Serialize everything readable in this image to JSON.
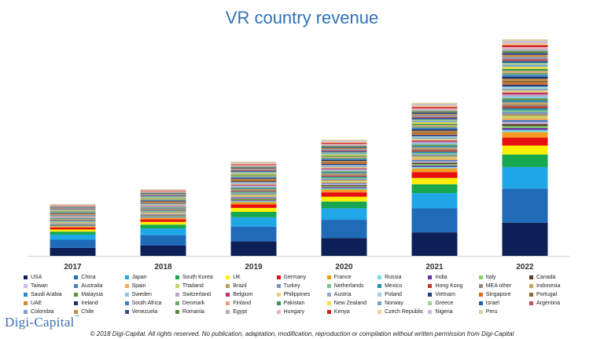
{
  "chart_data": {
    "type": "bar",
    "stacked": true,
    "title": "VR country revenue",
    "xlabel": "",
    "ylabel": "",
    "categories": [
      "2017",
      "2018",
      "2019",
      "2020",
      "2021",
      "2022"
    ],
    "totals": [
      66,
      85,
      120,
      148,
      195,
      276
    ],
    "ylim": [
      0,
      280
    ],
    "legend_position": "bottom",
    "series": [
      {
        "name": "USA",
        "color": "#0d1f57"
      },
      {
        "name": "China",
        "color": "#1f6bb8"
      },
      {
        "name": "Japan",
        "color": "#1fa7e8"
      },
      {
        "name": "South Korea",
        "color": "#17a84f"
      },
      {
        "name": "UK",
        "color": "#ffee00"
      },
      {
        "name": "Germany",
        "color": "#e60e0e"
      },
      {
        "name": "France",
        "color": "#f39a1f"
      },
      {
        "name": "Russia",
        "color": "#6fe0e6"
      },
      {
        "name": "India",
        "color": "#6a2d9e"
      },
      {
        "name": "Italy",
        "color": "#7fd46b"
      },
      {
        "name": "Canada",
        "color": "#5c3a1e"
      },
      {
        "name": "Taiwan",
        "color": "#c9b7e6"
      },
      {
        "name": "Australia",
        "color": "#4a7ebb"
      },
      {
        "name": "Spain",
        "color": "#f1a95a"
      },
      {
        "name": "Thailand",
        "color": "#c6d66a"
      },
      {
        "name": "Brazil",
        "color": "#b6a15a"
      },
      {
        "name": "Turkey",
        "color": "#7c8fc9"
      },
      {
        "name": "Netherlands",
        "color": "#7fc18f"
      },
      {
        "name": "Mexico",
        "color": "#1f8fa8"
      },
      {
        "name": "Hong Kong",
        "color": "#c0392b"
      },
      {
        "name": "MEA other",
        "color": "#9a8a7a"
      },
      {
        "name": "Indonesia",
        "color": "#c9a45c"
      },
      {
        "name": "Saudi Arabia",
        "color": "#2e86c1"
      },
      {
        "name": "Malaysia",
        "color": "#5e8f3a"
      },
      {
        "name": "Sweden",
        "color": "#88c8e0"
      },
      {
        "name": "Switzerland",
        "color": "#b9a6c9"
      },
      {
        "name": "Belgium",
        "color": "#c0306a"
      },
      {
        "name": "Philippines",
        "color": "#e8d27a"
      },
      {
        "name": "Austria",
        "color": "#8fa8c0"
      },
      {
        "name": "Poland",
        "color": "#a0cfe0"
      },
      {
        "name": "Vietnam",
        "color": "#1e3f7a"
      },
      {
        "name": "Singapore",
        "color": "#e06a1f"
      },
      {
        "name": "Portugal",
        "color": "#8a6a3a"
      },
      {
        "name": "UAE",
        "color": "#c98a3a"
      },
      {
        "name": "Ireland",
        "color": "#1a2f6a"
      },
      {
        "name": "South Africa",
        "color": "#3b7dc9"
      },
      {
        "name": "Denmark",
        "color": "#6fa86a"
      },
      {
        "name": "Finland",
        "color": "#e6a07a"
      },
      {
        "name": "Pakistan",
        "color": "#2f9a4a"
      },
      {
        "name": "New Zealand",
        "color": "#f0e040"
      },
      {
        "name": "Norway",
        "color": "#7aa0d0"
      },
      {
        "name": "Greece",
        "color": "#9ad08a"
      },
      {
        "name": "Israel",
        "color": "#2060a8"
      },
      {
        "name": "Argentina",
        "color": "#c0504d"
      },
      {
        "name": "Colombia",
        "color": "#7fa0c8"
      },
      {
        "name": "Chile",
        "color": "#d08a3a"
      },
      {
        "name": "Venezuela",
        "color": "#3a4f8a"
      },
      {
        "name": "Romania",
        "color": "#5a8a4a"
      },
      {
        "name": "Egypt",
        "color": "#b0b0b0"
      },
      {
        "name": "Hungary",
        "color": "#e6b0c8"
      },
      {
        "name": "Kenya",
        "color": "#d02020"
      },
      {
        "name": "Czech Republic",
        "color": "#f0d090"
      },
      {
        "name": "Nigeria",
        "color": "#c8b8e0"
      },
      {
        "name": "Peru",
        "color": "#d8d0a0"
      }
    ],
    "shares": [
      0.185,
      0.19,
      0.12,
      0.07,
      0.05,
      0.045,
      0.03,
      0.012,
      0.011,
      0.011,
      0.011,
      0.011,
      0.011,
      0.011,
      0.011,
      0.011,
      0.011,
      0.011,
      0.011,
      0.011,
      0.011,
      0.011,
      0.011,
      0.011,
      0.011,
      0.011,
      0.011,
      0.011,
      0.011,
      0.011,
      0.011,
      0.011,
      0.011,
      0.011,
      0.011,
      0.011,
      0.011,
      0.011,
      0.011,
      0.011,
      0.011,
      0.011,
      0.011,
      0.011,
      0.011,
      0.011,
      0.011,
      0.011,
      0.011,
      0.011,
      0.011,
      0.011,
      0.011,
      0.011
    ]
  },
  "branding": {
    "logo_text": "Digi-Capital",
    "logo_tm": "™",
    "copyright": "© 2018 Digi-Capital. All rights reserved. No publication, adaptation, modification, reproduction or compilation without written permission from Digi-Capital"
  }
}
